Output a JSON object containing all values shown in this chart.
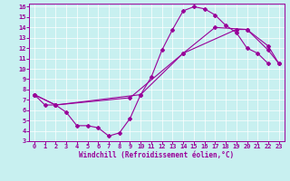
{
  "xlabel": "Windchill (Refroidissement éolien,°C)",
  "bg_color": "#c8f0f0",
  "line_color": "#990099",
  "xlim": [
    -0.5,
    23.5
  ],
  "ylim": [
    3,
    16.3
  ],
  "xticks": [
    0,
    1,
    2,
    3,
    4,
    5,
    6,
    7,
    8,
    9,
    10,
    11,
    12,
    13,
    14,
    15,
    16,
    17,
    18,
    19,
    20,
    21,
    22,
    23
  ],
  "yticks": [
    3,
    4,
    5,
    6,
    7,
    8,
    9,
    10,
    11,
    12,
    13,
    14,
    15,
    16
  ],
  "line1_x": [
    0,
    1,
    2,
    3,
    4,
    5,
    6,
    7,
    8,
    9,
    10,
    11,
    12,
    13,
    14,
    15,
    16,
    17,
    18,
    19,
    20,
    21,
    22
  ],
  "line1_y": [
    7.5,
    6.5,
    6.5,
    5.8,
    4.5,
    4.5,
    4.3,
    3.5,
    3.8,
    5.2,
    7.5,
    9.2,
    11.8,
    13.8,
    15.6,
    16.0,
    15.8,
    15.2,
    14.2,
    13.5,
    12.0,
    11.5,
    10.5
  ],
  "line2_x": [
    0,
    2,
    9,
    14,
    19,
    20,
    22,
    23
  ],
  "line2_y": [
    7.5,
    6.5,
    7.2,
    11.5,
    13.8,
    13.8,
    12.2,
    10.5
  ],
  "line3_x": [
    0,
    2,
    10,
    14,
    17,
    20,
    22,
    23
  ],
  "line3_y": [
    7.5,
    6.5,
    7.5,
    11.5,
    14.0,
    13.8,
    11.8,
    10.5
  ]
}
